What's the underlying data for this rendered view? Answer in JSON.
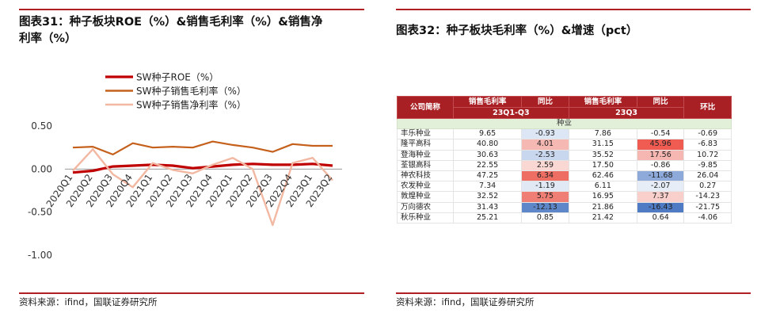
{
  "left": {
    "title_line1": "图表31：种子板块ROE（%）&销售毛利率（%）&销售净",
    "title_line2": "利率（%）",
    "source": "资料来源：ifind，国联证券研究所"
  },
  "right": {
    "title": "图表32：种子板块毛利率（%）&增速（pct）",
    "source": "资料来源：ifind，国联证券研究所"
  },
  "chart_data": [
    {
      "type": "line",
      "categories": [
        "2020Q1",
        "2020Q2",
        "2020Q3",
        "2020Q4",
        "2021Q1",
        "2021Q2",
        "2021Q3",
        "2021Q4",
        "2022Q1",
        "2022Q2",
        "2022Q3",
        "2022Q4",
        "2023Q1",
        "2023Q2"
      ],
      "tick_labels": [
        "2020Q1",
        "2020Q2",
        "2020Q3",
        "2020Q4",
        "2021Q1",
        "2021Q2",
        "2021Q3",
        "2021Q4",
        "2022Q1",
        "2022Q2",
        "2022Q3",
        "2022Q4",
        "2023Q1",
        "2023Q2"
      ],
      "y_ticks": [
        "0.50",
        "0.00",
        "-0.50",
        "-1.00"
      ],
      "ylim": [
        -1.0,
        0.5
      ],
      "grid": false,
      "legend_position": "top",
      "series": [
        {
          "name": "SW种子ROE（%）",
          "color": "#c00000",
          "width": 3.2,
          "values": [
            -0.04,
            -0.02,
            0.03,
            0.04,
            0.05,
            0.04,
            0.01,
            0.03,
            0.05,
            0.06,
            0.05,
            0.05,
            0.06,
            0.04
          ]
        },
        {
          "name": "SW种子销售毛利率（%）",
          "color": "#c5601c",
          "width": 2.2,
          "values": [
            0.25,
            0.26,
            0.17,
            0.3,
            0.25,
            0.26,
            0.25,
            0.32,
            0.28,
            0.25,
            0.2,
            0.29,
            0.27,
            0.27
          ]
        },
        {
          "name": "SW种子销售净利率（%）",
          "color": "#f2b8a2",
          "width": 2.4,
          "values": [
            -0.02,
            0.23,
            -0.06,
            -0.21,
            0.07,
            -0.01,
            -0.05,
            0.05,
            0.13,
            0.0,
            -0.65,
            0.07,
            0.13,
            -0.13
          ]
        }
      ]
    },
    {
      "type": "table",
      "header_row1": [
        "公司简称",
        "销售毛利率",
        "同比",
        "销售毛利率",
        "同比",
        "环比"
      ],
      "header_row2": [
        "23Q1-Q3",
        "23Q3"
      ],
      "section": "种业",
      "rows": [
        [
          "丰乐种业",
          "9.65",
          "-0.93",
          "7.86",
          "-0.54",
          "-0.69"
        ],
        [
          "隆平高科",
          "40.80",
          "4.01",
          "31.15",
          "45.96",
          "-6.83"
        ],
        [
          "登海种业",
          "30.63",
          "-2.53",
          "35.52",
          "17.56",
          "10.72"
        ],
        [
          "荃银高科",
          "22.55",
          "2.59",
          "17.50",
          "-0.86",
          "-9.85"
        ],
        [
          "神农科技",
          "47.25",
          "6.34",
          "62.46",
          "-11.68",
          "26.04"
        ],
        [
          "农发种业",
          "7.34",
          "-1.19",
          "6.11",
          "-2.07",
          "0.27"
        ],
        [
          "敦煌种业",
          "32.52",
          "5.75",
          "16.95",
          "7.37",
          "-14.23"
        ],
        [
          "万向德农",
          "31.43",
          "-12.13",
          "21.86",
          "-16.43",
          "-21.75"
        ],
        [
          "秋乐种业",
          "25.21",
          "0.85",
          "21.42",
          "0.64",
          "-4.06"
        ]
      ],
      "yoy_col1_colors": [
        "#dde6f4",
        "#f5b8b3",
        "#c9d7ee",
        "#f9d7d3",
        "#ee6e64",
        "#e1e9f5",
        "#ef7f75",
        "#5e87c9",
        "#ffffff"
      ],
      "yoy_col2_colors": [
        "#ffffff",
        "#f05b52",
        "#f6b7b2",
        "#ffffff",
        "#8eaadb",
        "#e7edf6",
        "#f9cfcb",
        "#4f7bc5",
        "#ffffff"
      ]
    }
  ]
}
